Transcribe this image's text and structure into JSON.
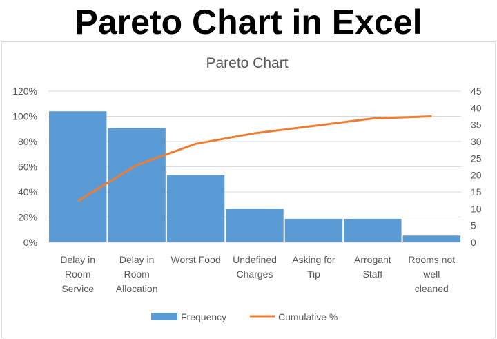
{
  "heading": "Pareto Chart in Excel",
  "chart_data": {
    "type": "bar",
    "title": "Pareto Chart",
    "categories": [
      "Delay in Room Service",
      "Delay in Room Allocation",
      "Worst Food",
      "Undefined Charges",
      "Asking for Tip",
      "Arrogant Staff",
      "Rooms not well cleaned"
    ],
    "category_lines": [
      [
        "Delay in",
        "Room",
        "Service"
      ],
      [
        "Delay in",
        "Room",
        "Allocation"
      ],
      [
        "Worst Food"
      ],
      [
        "Undefined",
        "Charges"
      ],
      [
        "Asking for",
        "Tip"
      ],
      [
        "Arrogant",
        "Staff"
      ],
      [
        "Rooms not",
        "well",
        "cleaned"
      ]
    ],
    "series": [
      {
        "name": "Frequency",
        "type": "bar",
        "axis": "right",
        "color": "#5b9bd5",
        "values": [
          39,
          34,
          20,
          10,
          7,
          7,
          2
        ]
      },
      {
        "name": "Cumulative %",
        "type": "line",
        "axis": "left",
        "color": "#ed7d31",
        "values": [
          32.8,
          61.3,
          78.2,
          86.6,
          92.4,
          98.3,
          100
        ]
      }
    ],
    "left_axis": {
      "range": [
        0,
        120
      ],
      "ticks": [
        "0%",
        "20%",
        "40%",
        "60%",
        "80%",
        "100%",
        "120%"
      ]
    },
    "right_axis": {
      "range": [
        0,
        45
      ],
      "ticks": [
        "0",
        "5",
        "10",
        "15",
        "20",
        "25",
        "30",
        "35",
        "40",
        "45"
      ]
    },
    "grid": true,
    "legend": "bottom"
  }
}
